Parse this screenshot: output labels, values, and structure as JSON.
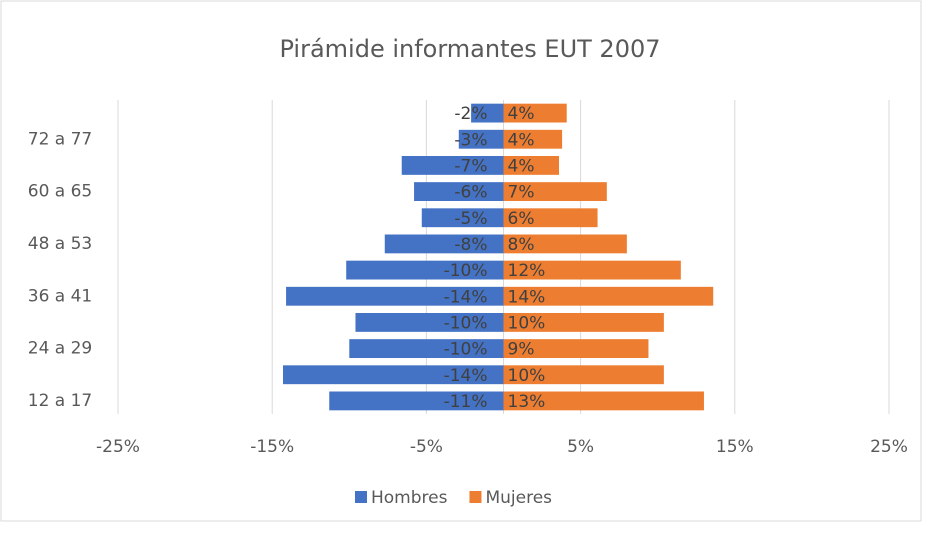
{
  "chart_data": {
    "type": "pyramid",
    "title": "Pirámide informantes EUT 2007",
    "categories": [
      "12 a 17",
      null,
      "24 a 29",
      null,
      "36 a 41",
      null,
      "48 a 53",
      null,
      "60 a 65",
      null,
      "72 a 77",
      null
    ],
    "series": [
      {
        "name": "Hombres",
        "color": "#4472c4",
        "values": [
          -11.3,
          -14.3,
          -10.0,
          -9.6,
          -14.1,
          -10.2,
          -7.7,
          -5.3,
          -5.8,
          -6.6,
          -2.9,
          -2.1
        ],
        "value_labels": [
          "-11%",
          "-14%",
          "-10%",
          "-10%",
          "-14%",
          "-10%",
          "-8%",
          "-5%",
          "-6%",
          "-7%",
          "-3%",
          "-2%"
        ]
      },
      {
        "name": "Mujeres",
        "color": "#ed7d31",
        "values": [
          13.0,
          10.4,
          9.4,
          10.4,
          13.6,
          11.5,
          8.0,
          6.1,
          6.7,
          3.6,
          3.8,
          4.1
        ],
        "value_labels": [
          "13%",
          "10%",
          "9%",
          "10%",
          "14%",
          "12%",
          "8%",
          "6%",
          "7%",
          "4%",
          "4%",
          "4%"
        ]
      }
    ],
    "xlim": [
      -25,
      25
    ],
    "xticks": [
      {
        "value": -25,
        "label": "-25%"
      },
      {
        "value": -15,
        "label": "-15%"
      },
      {
        "value": -5,
        "label": "-5%"
      },
      {
        "value": 5,
        "label": "5%"
      },
      {
        "value": 15,
        "label": "15%"
      },
      {
        "value": 25,
        "label": "25%"
      }
    ],
    "grid": true,
    "legend": "bottom"
  }
}
